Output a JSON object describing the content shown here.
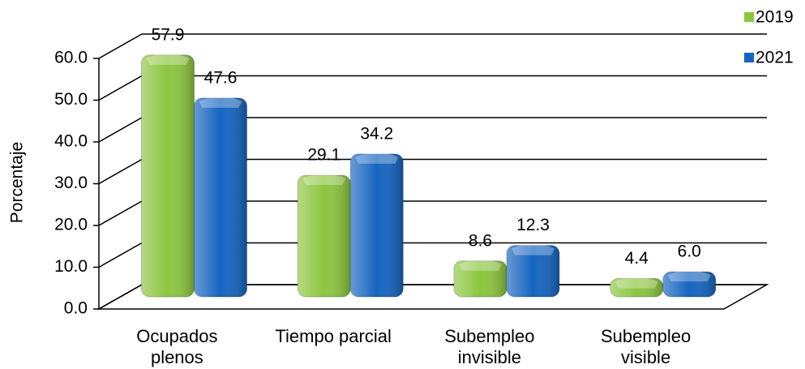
{
  "chart_data": {
    "type": "bar",
    "y_label": "Porcentaje",
    "categories": [
      "Ocupados plenos",
      "Tiempo parcial",
      "Subempleo invisible",
      "Subempleo visible"
    ],
    "series": [
      {
        "name": "2019",
        "color": "#8cc63f",
        "values": [
          57.9,
          29.1,
          8.6,
          4.4
        ],
        "value_labels": [
          "57.9",
          "29.1",
          "8.6",
          "4.4"
        ]
      },
      {
        "name": "2021",
        "color": "#1565c0",
        "values": [
          47.6,
          34.2,
          12.3,
          6.0
        ],
        "value_labels": [
          "47.6",
          "34.2",
          "12.3",
          "6.0"
        ]
      }
    ],
    "ylim": [
      0,
      60
    ],
    "yticks": [
      {
        "value": 0,
        "label": "0.0"
      },
      {
        "value": 10,
        "label": "10.0"
      },
      {
        "value": 20,
        "label": "20.0"
      },
      {
        "value": 30,
        "label": "30.0"
      },
      {
        "value": 40,
        "label": "40.0"
      },
      {
        "value": 50,
        "label": "50.0"
      },
      {
        "value": 60,
        "label": "60.0"
      }
    ],
    "grid": true,
    "legend": "top-right"
  }
}
